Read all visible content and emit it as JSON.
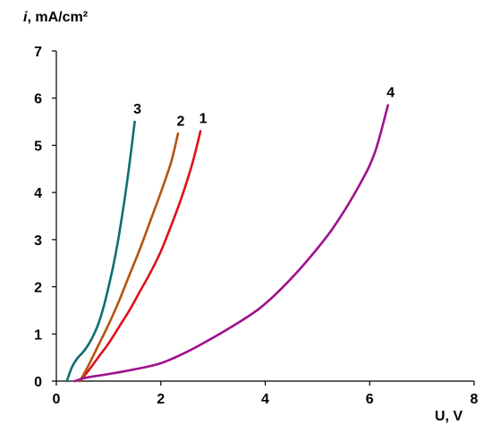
{
  "chart_data": {
    "type": "line",
    "ylabel_italic": "i",
    "ylabel_rest": ", mA/cm²",
    "xlabel": "U, V",
    "xlim": [
      0,
      8
    ],
    "ylim": [
      0,
      7
    ],
    "x_ticks": [
      0,
      2,
      4,
      6,
      8
    ],
    "y_ticks": [
      0,
      1,
      2,
      3,
      4,
      5,
      6,
      7
    ],
    "grid": false,
    "series": [
      {
        "label": "1",
        "color": "#e0101a",
        "points": [
          [
            0.45,
            0
          ],
          [
            0.6,
            0.2
          ],
          [
            0.8,
            0.5
          ],
          [
            1.0,
            0.8
          ],
          [
            1.2,
            1.15
          ],
          [
            1.4,
            1.5
          ],
          [
            1.6,
            1.9
          ],
          [
            1.8,
            2.3
          ],
          [
            2.0,
            2.75
          ],
          [
            2.2,
            3.3
          ],
          [
            2.4,
            3.9
          ],
          [
            2.6,
            4.6
          ],
          [
            2.76,
            5.3
          ]
        ]
      },
      {
        "label": "2",
        "color": "#b5540e",
        "points": [
          [
            0.45,
            0
          ],
          [
            0.6,
            0.3
          ],
          [
            0.8,
            0.75
          ],
          [
            1.0,
            1.2
          ],
          [
            1.2,
            1.7
          ],
          [
            1.4,
            2.25
          ],
          [
            1.6,
            2.8
          ],
          [
            1.8,
            3.4
          ],
          [
            2.0,
            4.0
          ],
          [
            2.2,
            4.65
          ],
          [
            2.33,
            5.25
          ]
        ]
      },
      {
        "label": "3",
        "color": "#0e6e72",
        "points": [
          [
            0.2,
            0
          ],
          [
            0.3,
            0.3
          ],
          [
            0.4,
            0.48
          ],
          [
            0.5,
            0.6
          ],
          [
            0.6,
            0.75
          ],
          [
            0.7,
            0.95
          ],
          [
            0.8,
            1.2
          ],
          [
            0.9,
            1.55
          ],
          [
            1.0,
            2.0
          ],
          [
            1.1,
            2.5
          ],
          [
            1.2,
            3.1
          ],
          [
            1.3,
            3.8
          ],
          [
            1.4,
            4.6
          ],
          [
            1.5,
            5.5
          ]
        ]
      },
      {
        "label": "4",
        "color": "#a0128c",
        "points": [
          [
            0.35,
            0
          ],
          [
            0.6,
            0.08
          ],
          [
            1.0,
            0.15
          ],
          [
            1.5,
            0.25
          ],
          [
            2.0,
            0.38
          ],
          [
            2.5,
            0.62
          ],
          [
            3.0,
            0.92
          ],
          [
            3.5,
            1.25
          ],
          [
            3.9,
            1.55
          ],
          [
            4.3,
            1.95
          ],
          [
            4.8,
            2.55
          ],
          [
            5.3,
            3.25
          ],
          [
            5.8,
            4.15
          ],
          [
            6.1,
            4.85
          ],
          [
            6.35,
            5.85
          ]
        ]
      }
    ]
  }
}
